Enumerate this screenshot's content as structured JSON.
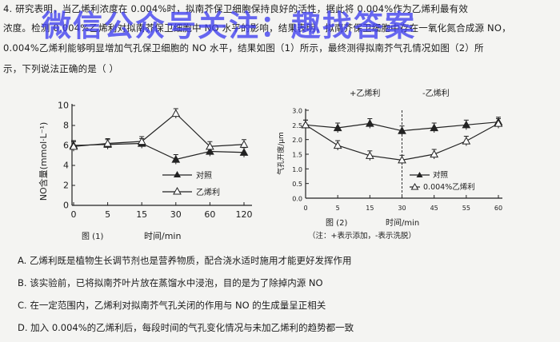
{
  "question": {
    "line1": "4. 研究表明，当乙烯利浓度在 0.004%时，拟南芥保卫细胞保持良好的活性，据此将 0.004%作为乙烯利最有效",
    "line2": "浓度。检测 0.004%乙烯利对拟南芥保卫细胞中 NO 水平的影响，结果表明，拟南芥保卫细胞中存在一氧化氮合成源 NO，",
    "line3": "0.004%乙烯利能够明显增加气孔保卫细胞的 NO 水平，结果如图（1）所示，最终测得拟南芥气孔情况如图（2）所",
    "line4": "示，下列说法正确的是（    ）"
  },
  "watermark": "微信公众号关注：趣找答案",
  "figure1": {
    "caption": "图 (1)",
    "xlabel": "时间/min",
    "ylabel": "NO含量(mmol·L⁻¹)",
    "legend": [
      "对照",
      "乙烯利"
    ]
  },
  "figure2": {
    "caption": "图 (2)",
    "xlabel": "时间/min",
    "ylabel": "气孔开度/μm",
    "top_left": "+乙烯利",
    "top_right": "-乙烯利",
    "note": "（注：+表示添加，-表示洗脱）",
    "legend": [
      "对照",
      "0.004%乙烯利"
    ]
  },
  "options": [
    "A. 乙烯利既是植物生长调节剂也是营养物质，配合浇水适时施用才能更好发挥作用",
    "B. 该实验前，已将拟南芥叶片放在蒸馏水中浸泡，目的是为了除掉内源 NO",
    "C. 在一定范围内，乙烯利对拟南芥气孔关闭的作用与 NO 的生成量呈正相关",
    "D. 加入 0.004%的乙烯利后，每段时间的气孔变化情况与未加乙烯利的趋势都一致"
  ],
  "chart_data": [
    {
      "type": "line",
      "title": "图 (1)",
      "xlabel": "时间/min",
      "ylabel": "NO含量(mmol·L⁻¹)",
      "categories": [
        "0",
        "5",
        "15",
        "30",
        "60",
        "120"
      ],
      "ylim": [
        0,
        10
      ],
      "yticks": [
        0,
        2,
        4,
        6,
        8,
        10
      ],
      "series": [
        {
          "name": "对照",
          "marker": "filled-triangle",
          "values": [
            6,
            6.1,
            6.2,
            4.6,
            5.4,
            5.3
          ]
        },
        {
          "name": "乙烯利",
          "marker": "open-triangle",
          "values": [
            5.9,
            6.2,
            6.4,
            9.2,
            5.9,
            6.1
          ]
        }
      ]
    },
    {
      "type": "line",
      "title": "图 (2)",
      "xlabel": "时间/min",
      "ylabel": "气孔开度/μm",
      "categories": [
        "0",
        "5",
        "15",
        "30",
        "45",
        "55",
        "60"
      ],
      "ylim": [
        0,
        3.0
      ],
      "yticks": [
        0,
        0.5,
        1.0,
        1.5,
        2.0,
        2.5,
        3.0
      ],
      "series": [
        {
          "name": "对照",
          "marker": "filled-triangle",
          "values": [
            2.5,
            2.4,
            2.55,
            2.3,
            2.4,
            2.5,
            2.6
          ]
        },
        {
          "name": "0.004%乙烯利",
          "marker": "open-triangle",
          "values": [
            2.5,
            1.8,
            1.45,
            1.3,
            1.5,
            1.95,
            2.55
          ]
        }
      ]
    }
  ]
}
